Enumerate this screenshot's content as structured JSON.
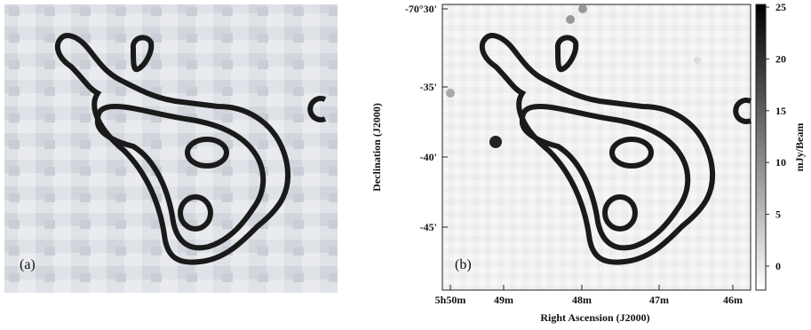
{
  "panel_a": {
    "label": "(a)"
  },
  "panel_b": {
    "label": "(b)",
    "x_axis": {
      "title": "Right Ascension (J2000)",
      "ticks": [
        "5h50m",
        "49m",
        "48m",
        "47m",
        "46m"
      ]
    },
    "y_axis": {
      "title": "Declination (J2000)",
      "ticks": [
        "-70°30'",
        "-35'",
        "-40'",
        "-45'"
      ]
    },
    "colorbar": {
      "title": "mJy/Beam",
      "ticks": [
        0,
        5,
        10,
        15,
        20,
        25
      ]
    }
  }
}
